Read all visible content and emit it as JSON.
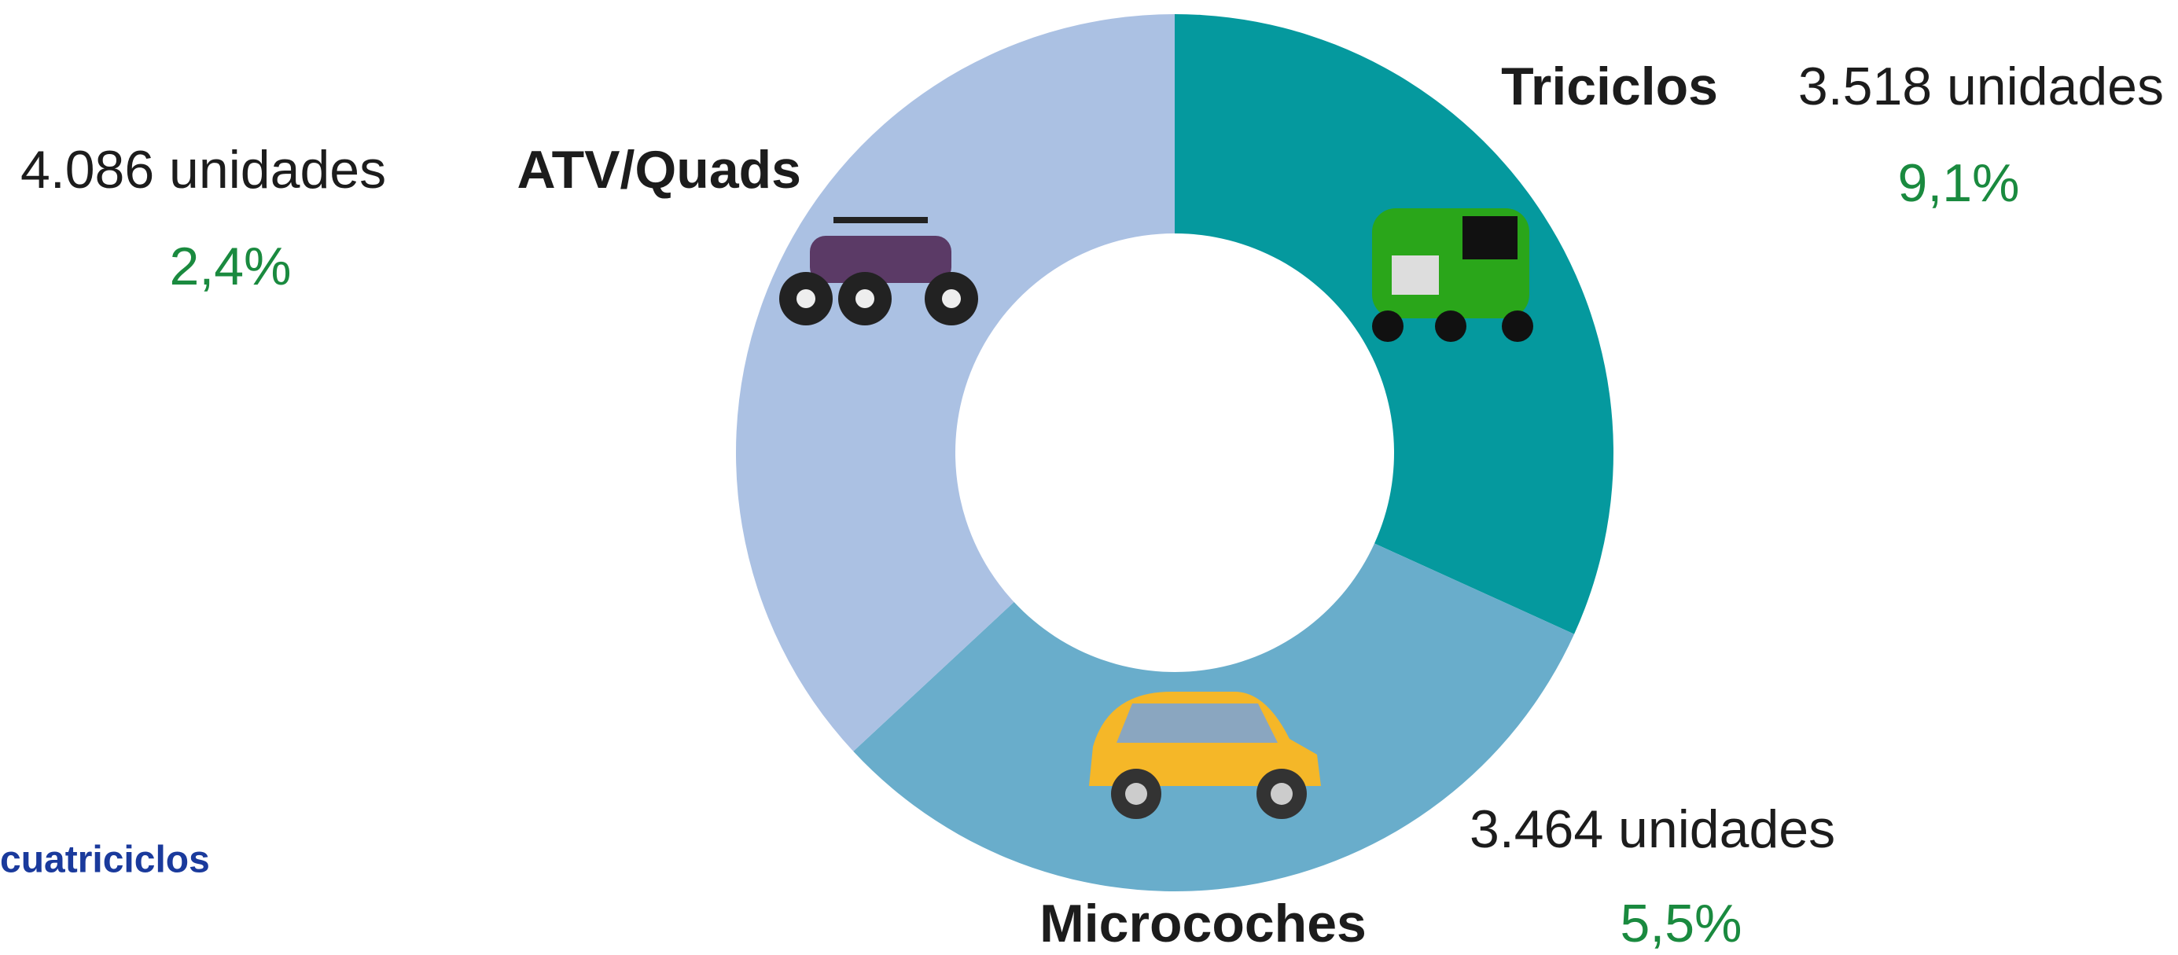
{
  "chart_data": {
    "type": "donut",
    "categories": [
      "Triciclos",
      "Microcoches",
      "ATV/Quads"
    ],
    "values": [
      3518,
      3464,
      4086
    ],
    "value_labels": [
      "3.518 unidades",
      "3.464 unidades",
      "4.086 unidades"
    ],
    "colors": [
      "#05999e",
      "#69adcb",
      "#abc1e3"
    ],
    "changes": [
      9.1,
      5.5,
      2.4
    ],
    "change_labels": [
      "9,1%",
      "5,5%",
      "2,4%"
    ],
    "footer": "cuatriciclos"
  }
}
